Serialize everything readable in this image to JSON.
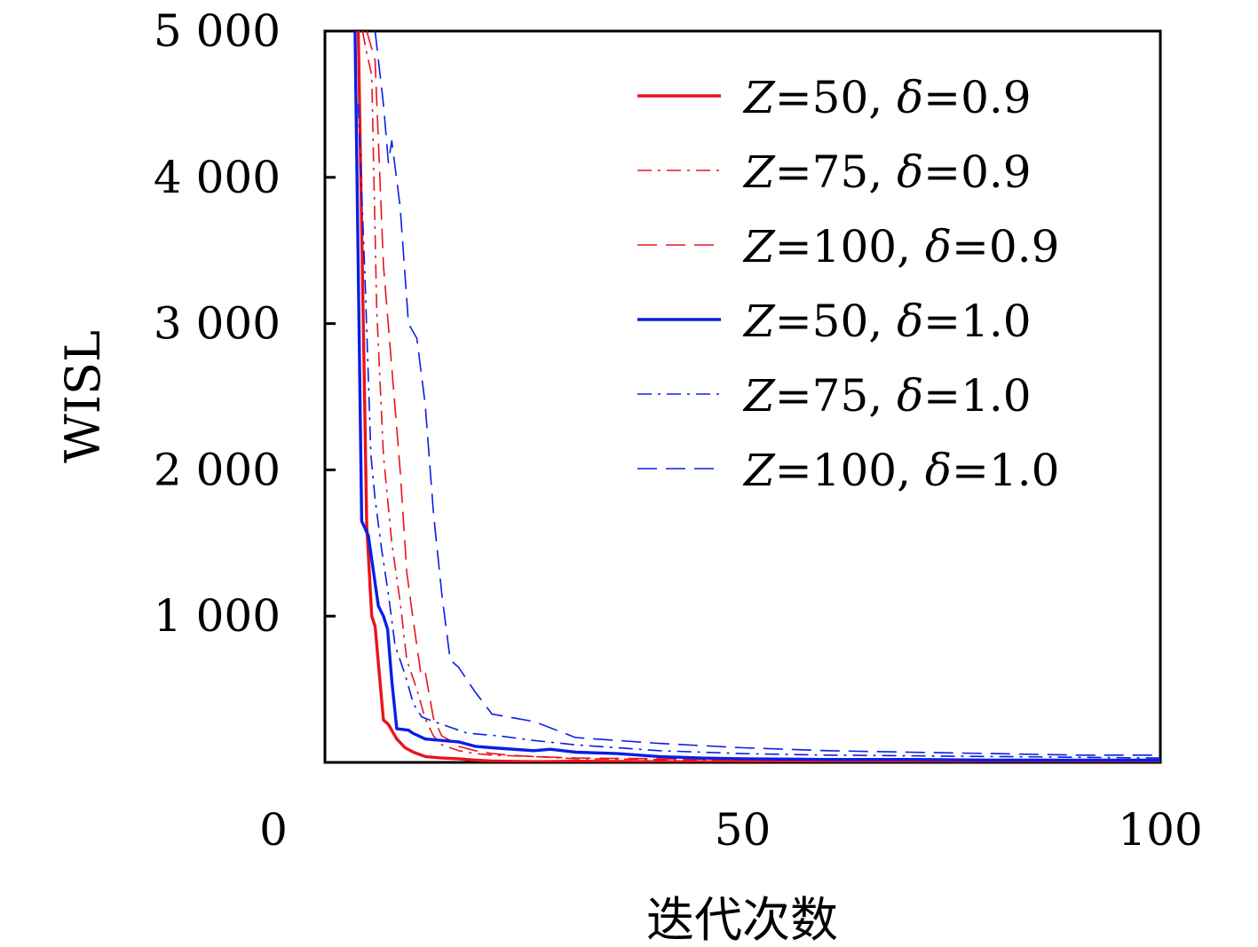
{
  "chart_data": {
    "type": "line",
    "title": "",
    "xlabel": "迭代次数",
    "ylabel": "WISL",
    "xlim": [
      0,
      100
    ],
    "ylim": [
      0,
      5000
    ],
    "x_ticks": [
      0,
      50,
      100
    ],
    "x_tick_labels": [
      "0",
      "50",
      "100"
    ],
    "y_ticks": [
      1000,
      2000,
      3000,
      4000,
      5000
    ],
    "y_tick_labels": [
      "1 000",
      "2 000",
      "3 000",
      "4 000",
      "5 000"
    ],
    "grid": false,
    "legend_position": "top-right",
    "series": [
      {
        "name": "Z=50, δ=0.9",
        "label_var": "Z",
        "label_z": "=50, ",
        "label_delta_var": "δ",
        "label_delta": "=0.9",
        "color": "#e8141a",
        "style": "solid",
        "x": [
          4,
          5,
          5.6,
          6,
          7,
          7.6,
          8.6,
          9.6,
          10.6,
          12,
          14,
          16,
          18,
          20,
          25,
          30,
          40,
          50,
          60,
          70,
          80,
          90,
          100
        ],
        "y": [
          5000,
          1620,
          1000,
          930,
          290,
          260,
          160,
          100,
          70,
          40,
          30,
          25,
          15,
          10,
          5,
          8,
          5,
          5,
          5,
          5,
          5,
          5,
          5
        ]
      },
      {
        "name": "Z=75, δ=0.9",
        "label_var": "Z",
        "label_z": "=75, ",
        "label_delta_var": "δ",
        "label_delta": "=0.9",
        "color": "#e8141a",
        "style": "dashdot",
        "x": [
          4.5,
          5,
          5.6,
          6.2,
          7,
          8,
          9,
          9.8,
          11,
          12,
          13,
          14,
          16,
          18,
          20,
          25,
          30,
          40,
          50,
          60,
          70,
          80,
          90,
          100
        ],
        "y": [
          5000,
          4850,
          4700,
          3100,
          2100,
          1500,
          1100,
          700,
          500,
          300,
          180,
          120,
          80,
          60,
          50,
          40,
          25,
          20,
          15,
          10,
          10,
          8,
          8,
          5
        ]
      },
      {
        "name": "Z=100, δ=0.9",
        "label_var": "Z",
        "label_z": "=100, ",
        "label_delta_var": "δ",
        "label_delta": "=0.9",
        "color": "#e8141a",
        "style": "dashed",
        "x": [
          5,
          6,
          7,
          8,
          9,
          9.8,
          10.5,
          11.5,
          12,
          13,
          14,
          15,
          16,
          18,
          20,
          22,
          25,
          30,
          40,
          50,
          60,
          70,
          80,
          90,
          100
        ],
        "y": [
          5000,
          4800,
          3400,
          2700,
          2000,
          1300,
          1000,
          600,
          620,
          300,
          180,
          150,
          110,
          80,
          60,
          50,
          40,
          30,
          25,
          20,
          15,
          15,
          10,
          10,
          10
        ]
      },
      {
        "name": "Z=50, δ=1.0",
        "label_var": "Z",
        "label_z": "=50, ",
        "label_delta_var": "δ",
        "label_delta": "=1.0",
        "color": "#0a1ee6",
        "style": "solid",
        "x": [
          3.6,
          4.4,
          5.2,
          6.4,
          7,
          7.5,
          8,
          8.6,
          10,
          10.5,
          12,
          14,
          16,
          18,
          20,
          25,
          27,
          30,
          35,
          40,
          45,
          50,
          60,
          70,
          80,
          90,
          100
        ],
        "y": [
          5000,
          1650,
          1550,
          1070,
          1000,
          910,
          560,
          230,
          220,
          200,
          160,
          150,
          140,
          110,
          100,
          80,
          90,
          70,
          60,
          40,
          30,
          25,
          20,
          20,
          15,
          15,
          15
        ]
      },
      {
        "name": "Z=75, δ=1.0",
        "label_var": "Z",
        "label_z": "=75, ",
        "label_delta_var": "δ",
        "label_delta": "=1.0",
        "color": "#0a1ee6",
        "style": "dashdot",
        "x": [
          4,
          4.8,
          5.5,
          6,
          6.8,
          7.6,
          8.4,
          9.6,
          10.6,
          11.6,
          13,
          15,
          17,
          19,
          21,
          25,
          30,
          35,
          40,
          50,
          60,
          70,
          80,
          90,
          100
        ],
        "y": [
          4500,
          3300,
          2100,
          1800,
          1450,
          1150,
          800,
          600,
          400,
          310,
          280,
          240,
          200,
          190,
          180,
          150,
          120,
          100,
          80,
          60,
          50,
          45,
          40,
          35,
          30
        ]
      },
      {
        "name": "Z=100, δ=1.0",
        "label_var": "Z",
        "label_z": "=100, ",
        "label_delta_var": "δ",
        "label_delta": "=1.0",
        "color": "#0a1ee6",
        "style": "dashed",
        "x": [
          6,
          7,
          7.6,
          8,
          9,
          10,
          11,
          12,
          13,
          14,
          15,
          16,
          18,
          20,
          25,
          30,
          35,
          40,
          50,
          60,
          70,
          80,
          90,
          100
        ],
        "y": [
          5000,
          4500,
          4100,
          4250,
          3800,
          3000,
          2900,
          2450,
          1700,
          1150,
          700,
          650,
          480,
          330,
          280,
          170,
          150,
          130,
          100,
          80,
          70,
          60,
          50,
          50
        ]
      }
    ]
  }
}
